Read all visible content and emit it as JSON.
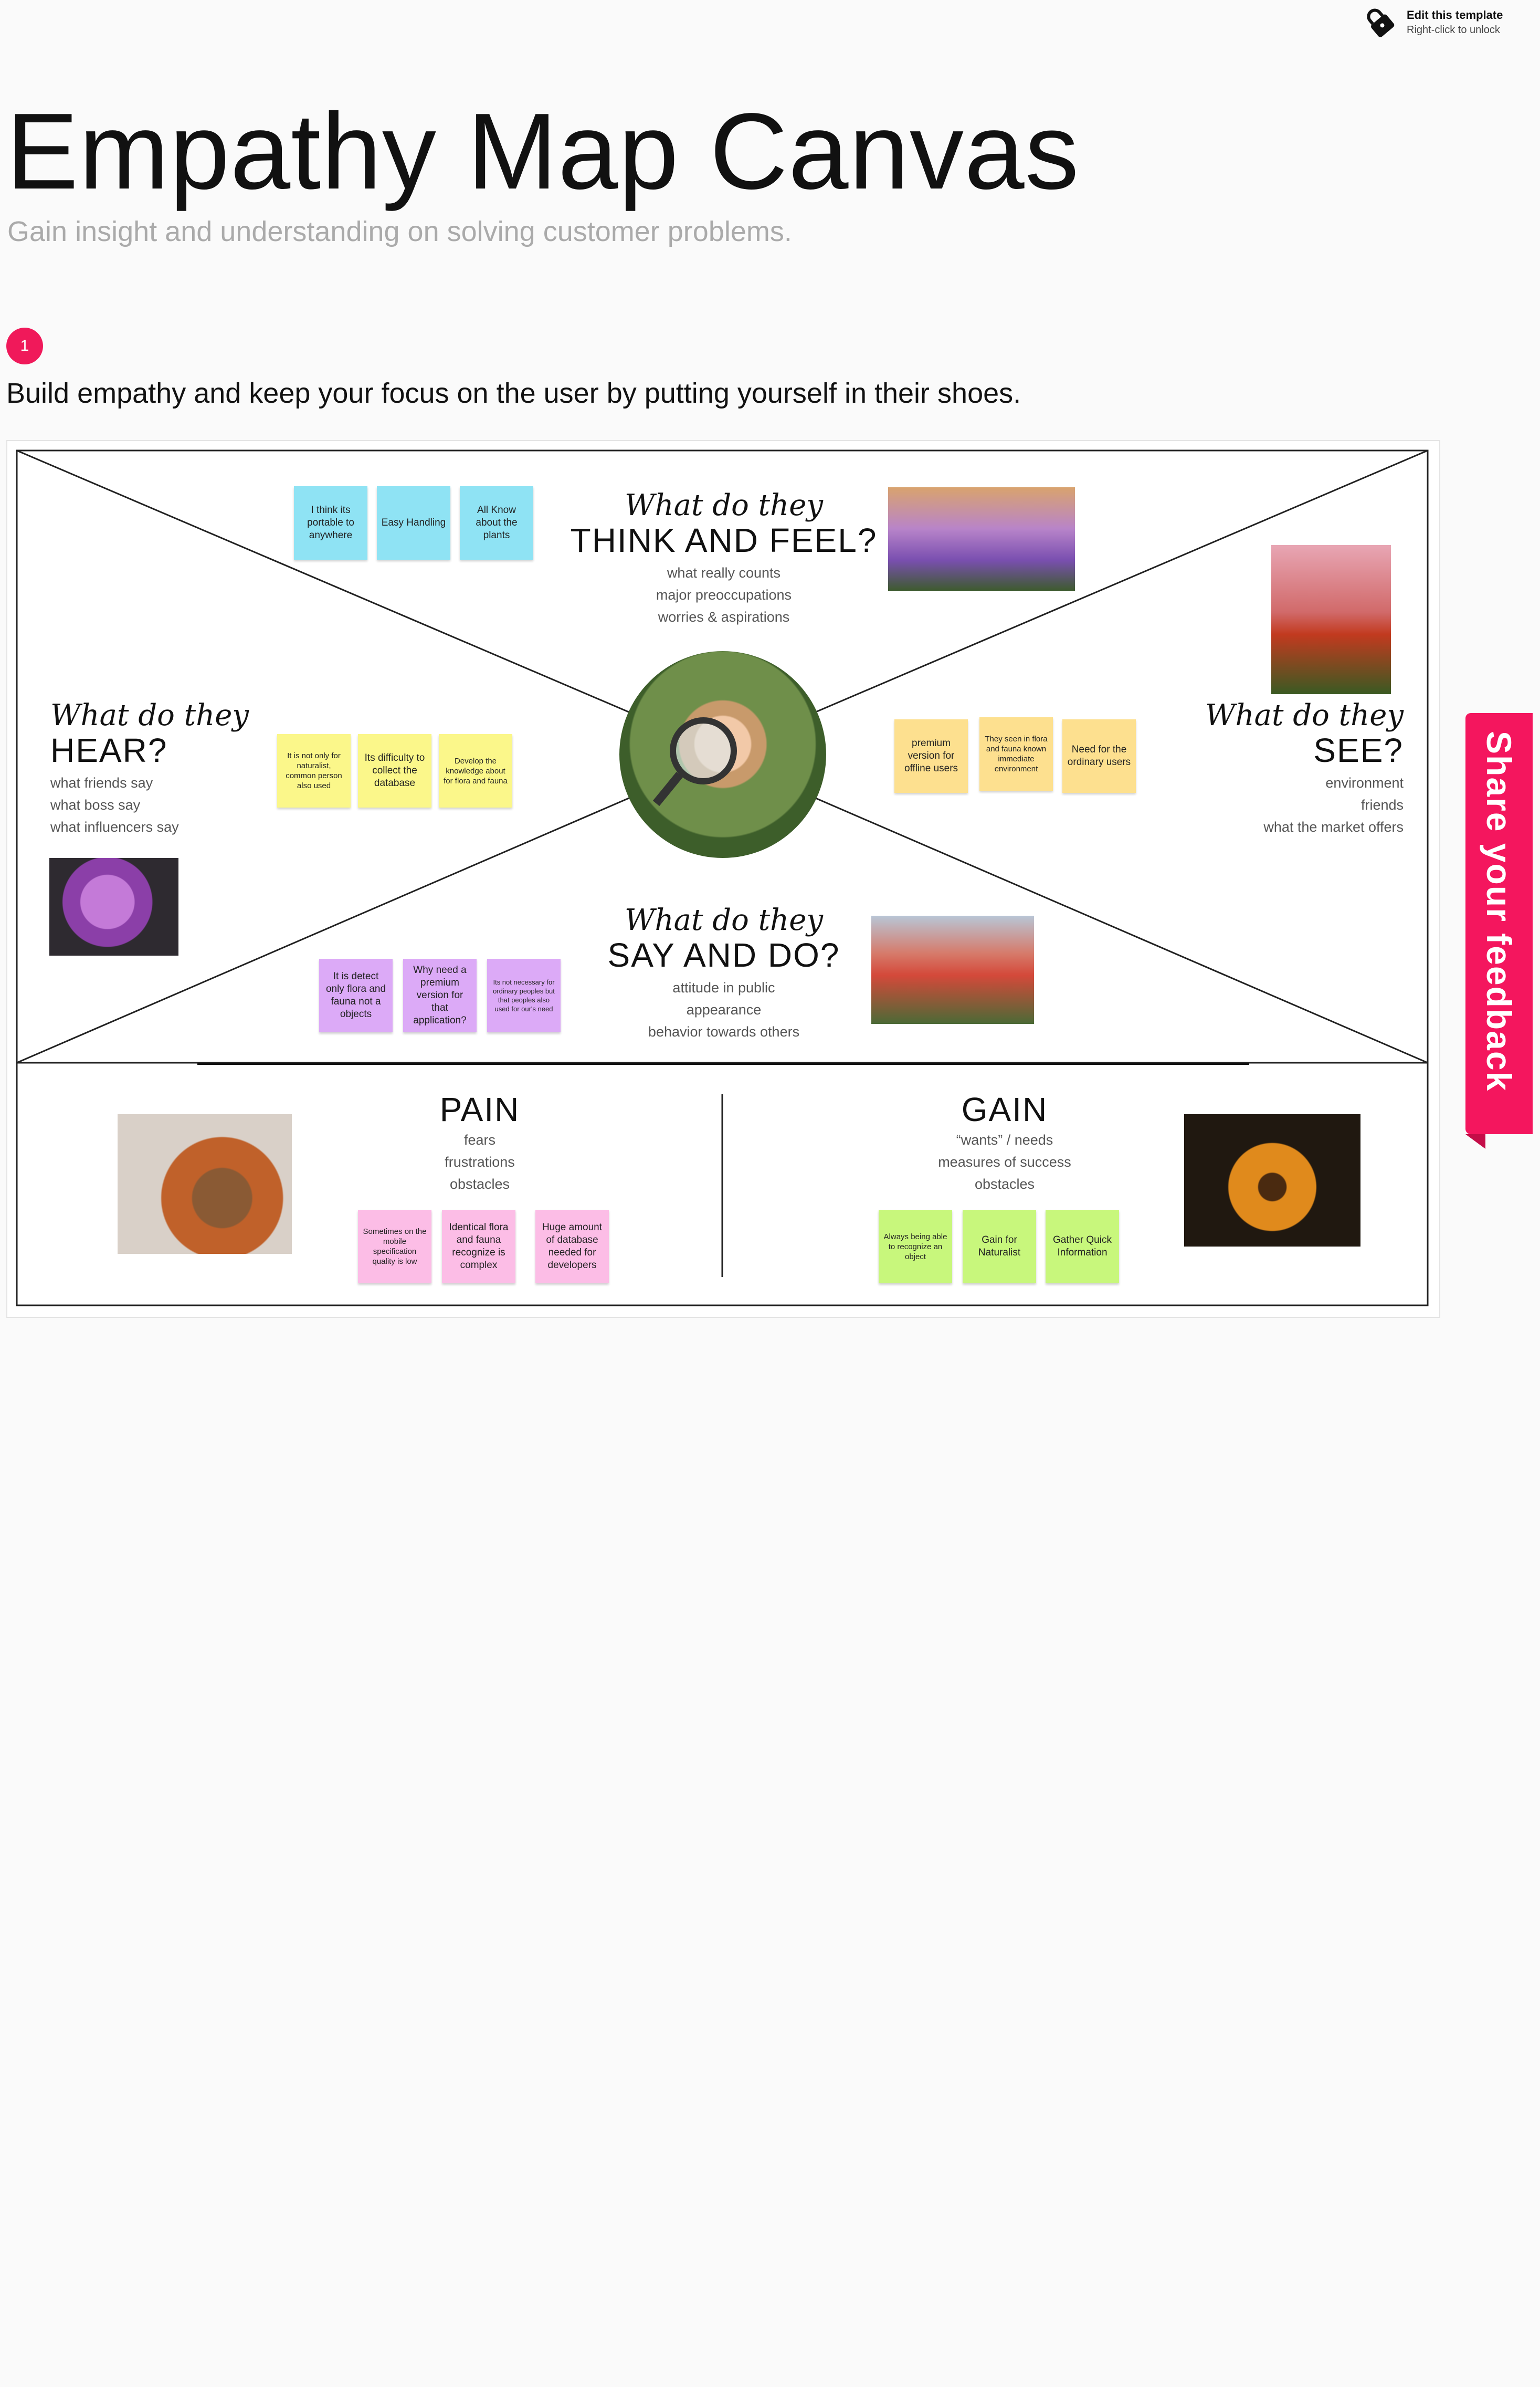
{
  "header": {
    "edit_title": "Edit this template",
    "edit_hint": "Right-click to unlock",
    "title": "Empathy Map Canvas",
    "subtitle": "Gain insight and understanding on solving customer problems.",
    "step_number": "1",
    "step_text": "Build empathy and keep your focus on the user by putting yourself in their shoes."
  },
  "feedback": {
    "label": "Share your feedback"
  },
  "colors": {
    "accent": "#f4165e",
    "blue_note": "#8fe3f4",
    "yellow_note": "#fbf78a",
    "orange_note": "#fde08f",
    "purple_note": "#dcaaf7",
    "pink_note": "#fcbde6",
    "green_note": "#c8f77c"
  },
  "think": {
    "script": "What do they",
    "heading": "THINK AND FEEL?",
    "lines": [
      "what really counts",
      "major preoccupations",
      "worries & aspirations"
    ],
    "notes": [
      "I think its portable to anywhere",
      "Easy Handling",
      "All Know about the plants"
    ]
  },
  "hear": {
    "script": "What do they",
    "heading": "HEAR?",
    "lines": [
      "what friends say",
      "what boss say",
      "what influencers say"
    ],
    "notes": [
      "It is not only for naturalist, common person also used",
      "Its difficulty to collect the database",
      "Develop the knowledge about for flora and fauna"
    ]
  },
  "see": {
    "script": "What do they",
    "heading": "SEE?",
    "lines": [
      "environment",
      "friends",
      "what the market offers"
    ],
    "notes": [
      "premium version for offline users",
      "They seen in flora and fauna known immediate environment",
      "Need for the ordinary users"
    ]
  },
  "say": {
    "script": "What do they",
    "heading": "SAY AND DO?",
    "lines": [
      "attitude in public",
      "appearance",
      "behavior towards others"
    ],
    "notes": [
      "It is detect only flora and fauna not a objects",
      "Why need a premium version for that application?",
      "Its not necessary for ordinary peoples but that peoples also used for our's need"
    ]
  },
  "pain": {
    "heading": "PAIN",
    "lines": [
      "fears",
      "frustrations",
      "obstacles"
    ],
    "notes": [
      "Sometimes on the mobile specification quality is low",
      "Identical flora and fauna recognize is complex",
      "Huge amount of database needed for developers"
    ]
  },
  "gain": {
    "heading": "GAIN",
    "lines": [
      "“wants” / needs",
      "measures of success",
      "obstacles"
    ],
    "notes": [
      "Always being able to recognize an object",
      "Gain for Naturalist",
      "Gather Quick Information"
    ]
  },
  "icons": [
    "lock-icon"
  ]
}
